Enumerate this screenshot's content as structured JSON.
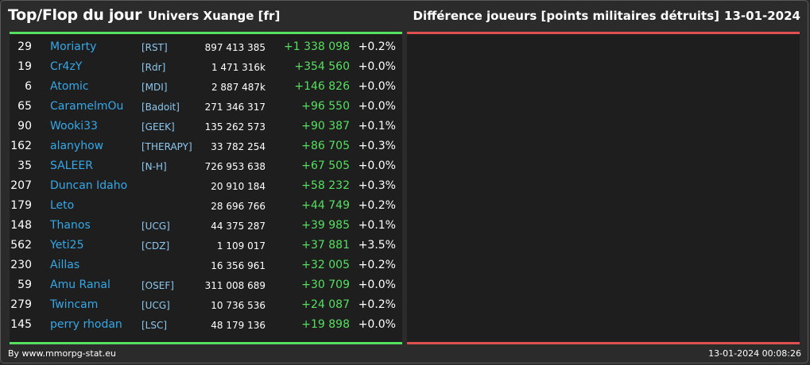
{
  "header": {
    "title": "Top/Flop du jour",
    "universe": "Univers Xuange [fr]",
    "metric": "Différence joueurs [points militaires détruits]",
    "date": "13-01-2024"
  },
  "colors": {
    "top_accent": "#55e060",
    "flop_accent": "#e05050",
    "player_name": "#35a8e8",
    "background": "#2b2b2b",
    "panel": "#1e1e1e"
  },
  "top": {
    "rows": [
      {
        "rank": "29",
        "name": "Moriarty",
        "alliance": "[RST]",
        "points": "897 413 385",
        "diff": "+1 338 098",
        "pct": "+0.2%"
      },
      {
        "rank": "19",
        "name": "Cr4zY",
        "alliance": "[Rdr]",
        "points": "1 471 316k",
        "diff": "+354 560",
        "pct": "+0.0%"
      },
      {
        "rank": "6",
        "name": "Atomic",
        "alliance": "[MDI]",
        "points": "2 887 487k",
        "diff": "+146 826",
        "pct": "+0.0%"
      },
      {
        "rank": "65",
        "name": "CaramelmOu",
        "alliance": "[Badoit]",
        "points": "271 346 317",
        "diff": "+96 550",
        "pct": "+0.0%"
      },
      {
        "rank": "90",
        "name": "Wooki33",
        "alliance": "[GEEK]",
        "points": "135 262 573",
        "diff": "+90 387",
        "pct": "+0.1%"
      },
      {
        "rank": "162",
        "name": "alanyhow",
        "alliance": "[THERAPY]",
        "points": "33 782 254",
        "diff": "+86 705",
        "pct": "+0.3%"
      },
      {
        "rank": "35",
        "name": "SALEER",
        "alliance": "[N-H]",
        "points": "726 953 638",
        "diff": "+67 505",
        "pct": "+0.0%"
      },
      {
        "rank": "207",
        "name": "Duncan Idaho",
        "alliance": "",
        "points": "20 910 184",
        "diff": "+58 232",
        "pct": "+0.3%"
      },
      {
        "rank": "179",
        "name": "Leto",
        "alliance": "",
        "points": "28 696 766",
        "diff": "+44 749",
        "pct": "+0.2%"
      },
      {
        "rank": "148",
        "name": "Thanos",
        "alliance": "[UCG]",
        "points": "44 375 287",
        "diff": "+39 985",
        "pct": "+0.1%"
      },
      {
        "rank": "562",
        "name": "Yeti25",
        "alliance": "[CDZ]",
        "points": "1 109 017",
        "diff": "+37 881",
        "pct": "+3.5%"
      },
      {
        "rank": "230",
        "name": "Aillas",
        "alliance": "",
        "points": "16 356 961",
        "diff": "+32 005",
        "pct": "+0.2%"
      },
      {
        "rank": "59",
        "name": "Amu Ranal",
        "alliance": "[OSEF]",
        "points": "311 008 689",
        "diff": "+30 709",
        "pct": "+0.0%"
      },
      {
        "rank": "279",
        "name": "Twincam",
        "alliance": "[UCG]",
        "points": "10 736 536",
        "diff": "+24 087",
        "pct": "+0.2%"
      },
      {
        "rank": "145",
        "name": "perry rhodan",
        "alliance": "[LSC]",
        "points": "48 179 136",
        "diff": "+19 898",
        "pct": "+0.0%"
      }
    ]
  },
  "footer": {
    "credit": "By www.mmorpg-stat.eu",
    "timestamp": "13-01-2024 00:08:26"
  }
}
